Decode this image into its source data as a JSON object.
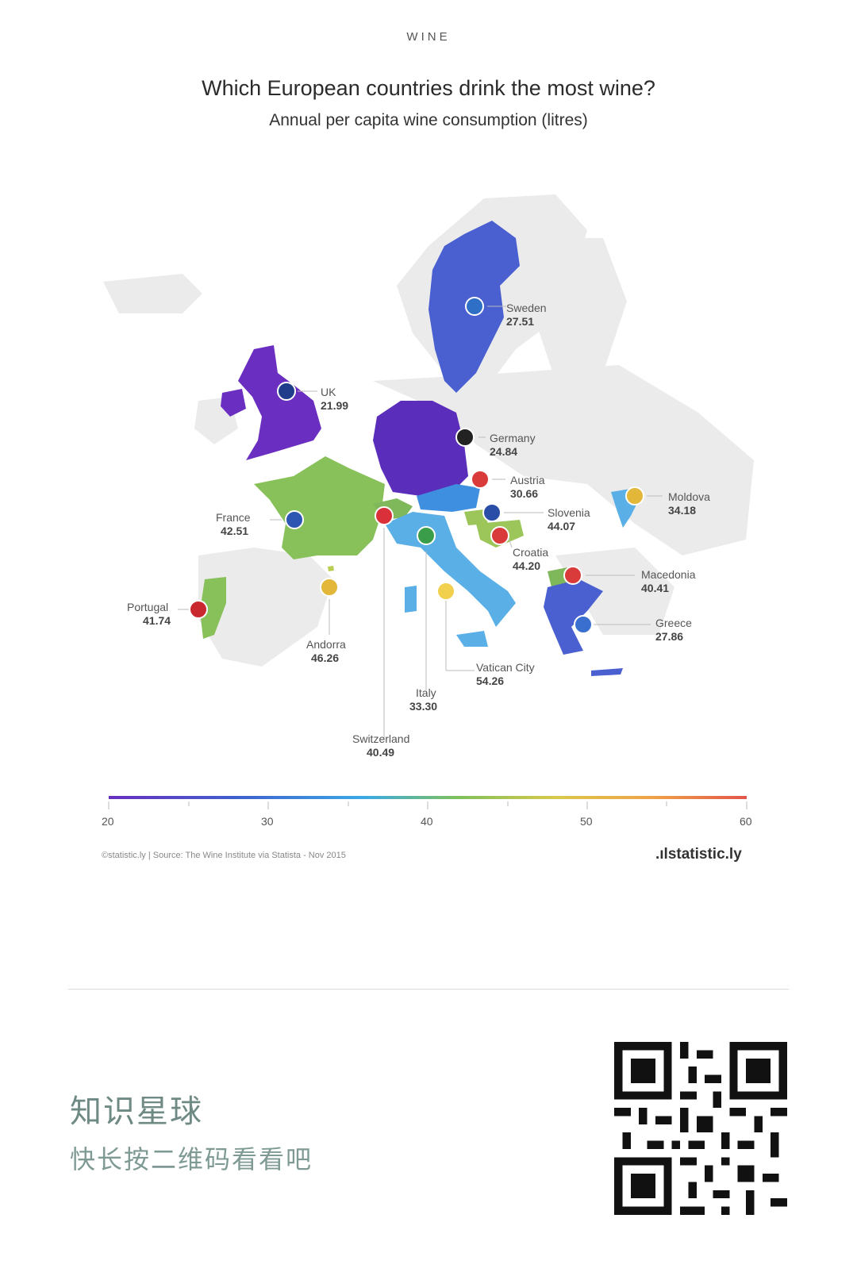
{
  "header": {
    "kicker": "WINE",
    "title": "Which European countries drink the most wine?",
    "subtitle": "Annual per capita wine consumption (litres)"
  },
  "colors": {
    "UK": "#6a2fc0",
    "Germany": "#5b2dbb",
    "Sweden": "#4a5fd0",
    "Greece": "#4a5fd0",
    "Austria": "#3f8fe0",
    "Italy": "#5ab0e6",
    "Moldova": "#5ab0e6",
    "Switzerland": "#7fb85a",
    "Macedonia": "#7fb85a",
    "France": "#88c05a",
    "Portugal": "#88c05a",
    "Slovenia": "#9cc65a",
    "Croatia": "#9cc65a",
    "Andorra": "#b9cf53",
    "Vatican": "#e0c44d",
    "land": "#ebebeb"
  },
  "countries": [
    {
      "name": "Sweden",
      "value": "27.51"
    },
    {
      "name": "UK",
      "value": "21.99"
    },
    {
      "name": "Germany",
      "value": "24.84"
    },
    {
      "name": "Austria",
      "value": "30.66"
    },
    {
      "name": "Slovenia",
      "value": "44.07"
    },
    {
      "name": "Moldova",
      "value": "34.18"
    },
    {
      "name": "France",
      "value": "42.51"
    },
    {
      "name": "Croatia",
      "value": "44.20"
    },
    {
      "name": "Macedonia",
      "value": "40.41"
    },
    {
      "name": "Portugal",
      "value": "41.74"
    },
    {
      "name": "Greece",
      "value": "27.86"
    },
    {
      "name": "Andorra",
      "value": "46.26"
    },
    {
      "name": "Vatican City",
      "value": "54.26"
    },
    {
      "name": "Italy",
      "value": "33.30"
    },
    {
      "name": "Switzerland",
      "value": "40.49"
    }
  ],
  "scale": {
    "ticks": [
      "20",
      "30",
      "40",
      "50",
      "60"
    ],
    "colors": [
      "#6a2fc0",
      "#3f5fd0",
      "#3aa9e6",
      "#7fc15a",
      "#d9c94a",
      "#f0a347",
      "#e4554a"
    ]
  },
  "footer": {
    "credit": "©statistic.ly | Source: The Wine Institute via Statista - Nov 2015",
    "brand": ".ılstatistic.ly",
    "promo_title": "知识星球",
    "promo_sub": "快长按二维码看看吧"
  },
  "icons": {
    "qr": "qr-code-icon",
    "flags": "country-flag-icon"
  }
}
